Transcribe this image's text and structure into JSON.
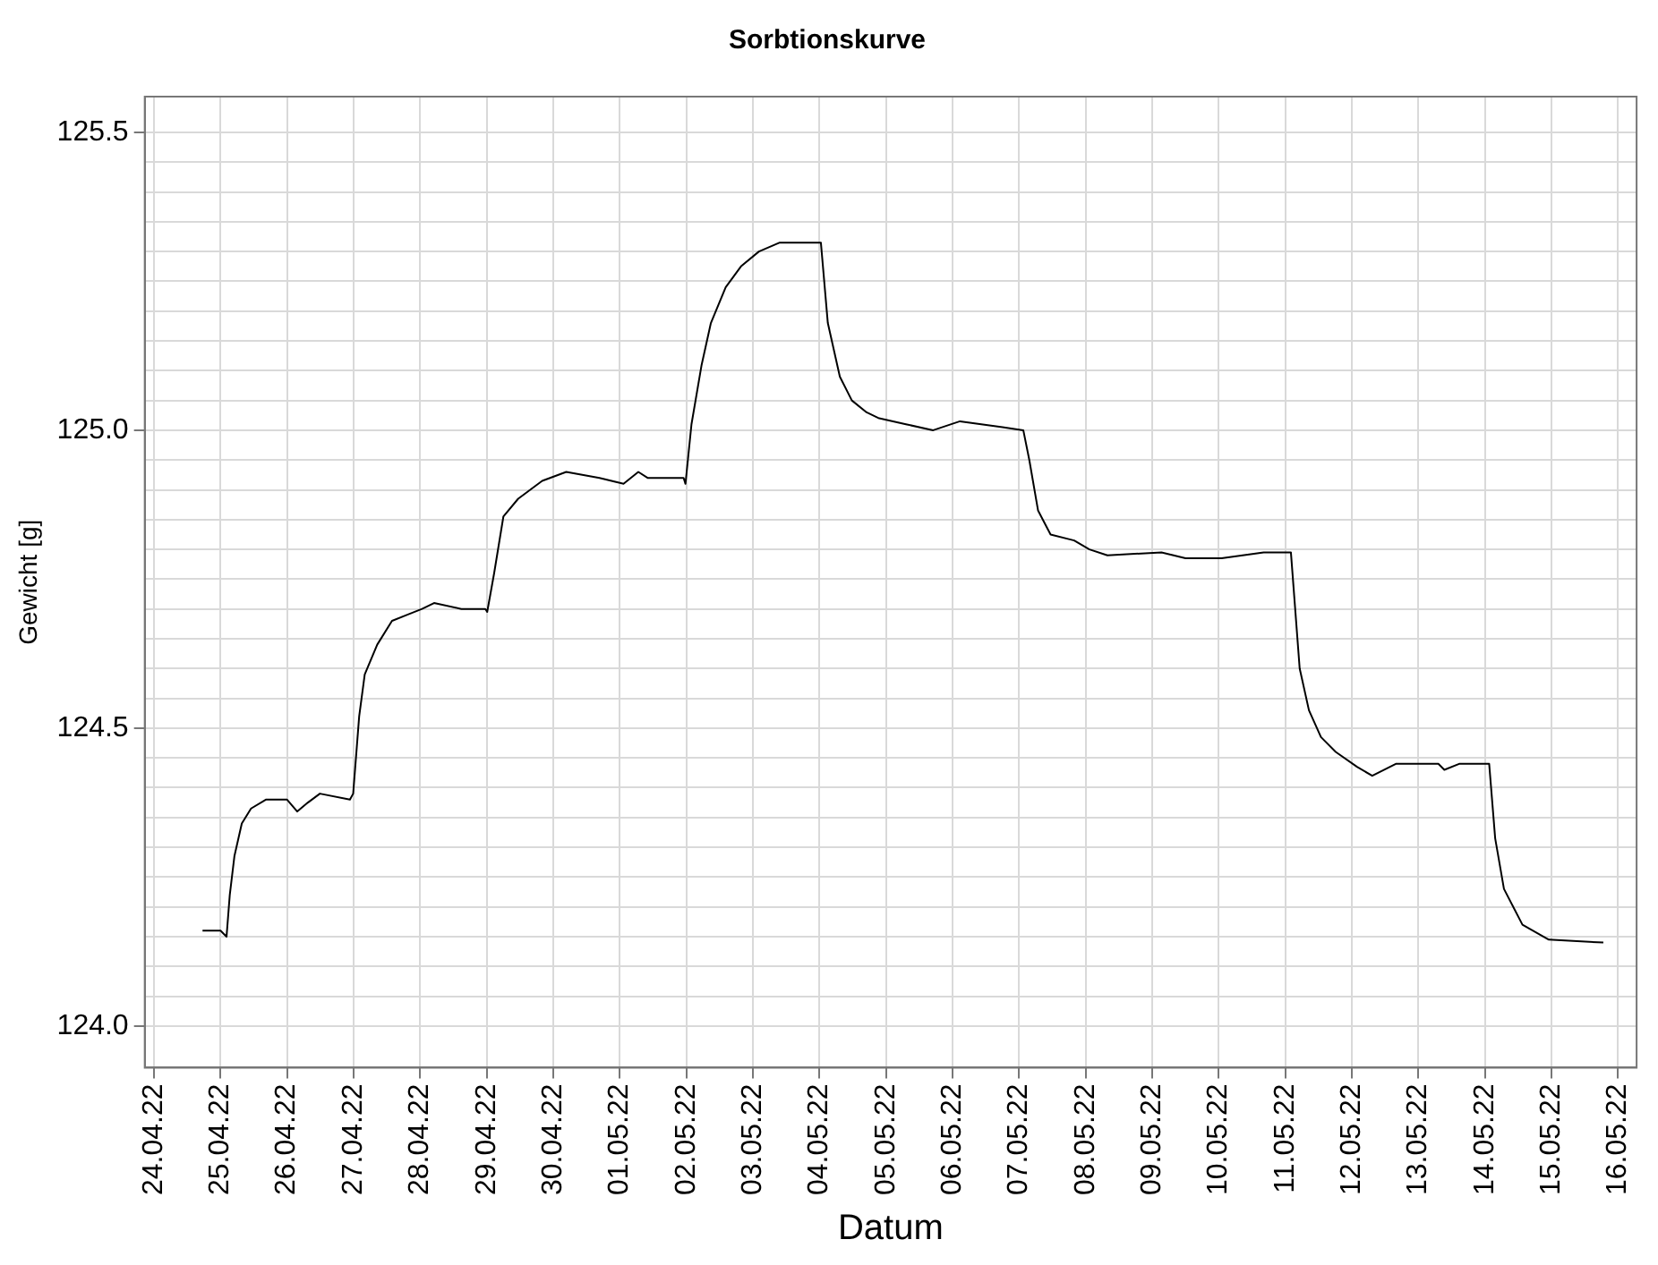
{
  "chart_data": {
    "type": "line",
    "title": "Sorbtionskurve",
    "xlabel": "Datum",
    "ylabel": "Gewicht [g]",
    "x": [
      "--04-24T17:30",
      "--04-25T00:00",
      "--04-25T02:10",
      "--04-25T03:20",
      "--04-25T05:00",
      "--04-25T07:40",
      "--04-25T11:00",
      "--04-25T16:20",
      "--04-26T00:00",
      "--04-26T03:40",
      "--04-26T07:30",
      "--04-26T11:50",
      "--04-26T22:40",
      "--04-26T23:50",
      "--04-27T02:00",
      "--04-27T04:00",
      "--04-27T08:30",
      "--04-27T13:50",
      "--04-27T19:10",
      "--04-28T00:40",
      "--04-28T05:00",
      "--04-28T14:50",
      "--04-28T23:30",
      "--04-29T00:10",
      "--04-29T02:40",
      "--04-29T06:00",
      "--04-29T11:20",
      "--04-29T20:00",
      "--04-30T04:40",
      "--04-30T16:40",
      "--05-01T01:20",
      "--05-01T06:40",
      "--05-01T10:00",
      "--05-01T23:00",
      "--05-01T23:40",
      "--05-02T01:50",
      "--05-02T05:30",
      "--05-02T08:50",
      "--05-02T14:10",
      "--05-02T19:40",
      "--05-03T02:10",
      "--05-03T09:40",
      "--05-04T00:30",
      "--05-04T03:00",
      "--05-04T07:20",
      "--05-04T11:40",
      "--05-04T17:00",
      "--05-04T21:30",
      "--05-05T07:10",
      "--05-05T17:00",
      "--05-06T02:40",
      "--05-06T18:00",
      "--05-07T01:30",
      "--05-07T03:40",
      "--05-07T06:50",
      "--05-07T11:20",
      "--05-07T19:50",
      "--05-08T01:20",
      "--05-08T07:50",
      "--05-09T03:20",
      "--05-09T12:00",
      "--05-10T01:00",
      "--05-10T16:10",
      "--05-11T02:00",
      "--05-11T05:10",
      "--05-11T08:30",
      "--05-11T12:50",
      "--05-11T18:10",
      "--05-12T01:50",
      "--05-12T07:20",
      "--05-12T15:50",
      "--05-13T07:10",
      "--05-13T09:20",
      "--05-13T14:40",
      "--05-14T01:30",
      "--05-14T03:40",
      "--05-14T06:50",
      "--05-14T13:30",
      "--05-14T23:00",
      "--05-15T18:40"
    ],
    "series": [
      {
        "color": "#000000",
        "values": [
          124.16,
          124.16,
          124.15,
          124.22,
          124.285,
          124.34,
          124.365,
          124.38,
          124.38,
          124.36,
          124.375,
          124.39,
          124.38,
          124.39,
          124.52,
          124.59,
          124.64,
          124.68,
          124.69,
          124.7,
          124.71,
          124.7,
          124.7,
          124.695,
          124.76,
          124.855,
          124.885,
          124.915,
          124.93,
          124.92,
          124.91,
          124.93,
          124.92,
          124.92,
          124.91,
          125.01,
          125.11,
          125.18,
          125.24,
          125.275,
          125.3,
          125.315,
          125.315,
          125.18,
          125.09,
          125.05,
          125.03,
          125.02,
          125.01,
          125.0,
          125.015,
          125.005,
          125.0,
          124.95,
          124.865,
          124.825,
          124.815,
          124.8,
          124.79,
          124.795,
          124.785,
          124.785,
          124.795,
          124.795,
          124.6,
          124.53,
          124.485,
          124.46,
          124.435,
          124.42,
          124.44,
          124.44,
          124.43,
          124.44,
          124.44,
          124.315,
          124.23,
          124.17,
          124.145,
          124.14
        ]
      }
    ],
    "xlim": [
      "--04-23T20:40",
      "--05-16T06:40"
    ],
    "xticks": [
      {
        "value": "--04-24",
        "label": "24.04.22"
      },
      {
        "value": "--04-25",
        "label": "25.04.22"
      },
      {
        "value": "--04-26",
        "label": "26.04.22"
      },
      {
        "value": "--04-27",
        "label": "27.04.22"
      },
      {
        "value": "--04-28",
        "label": "28.04.22"
      },
      {
        "value": "--04-29",
        "label": "29.04.22"
      },
      {
        "value": "--04-30",
        "label": "30.04.22"
      },
      {
        "value": "--05-01",
        "label": "01.05.22"
      },
      {
        "value": "--05-02",
        "label": "02.05.22"
      },
      {
        "value": "--05-03",
        "label": "03.05.22"
      },
      {
        "value": "--05-04",
        "label": "04.05.22"
      },
      {
        "value": "--05-05",
        "label": "05.05.22"
      },
      {
        "value": "--05-06",
        "label": "06.05.22"
      },
      {
        "value": "--05-07",
        "label": "07.05.22"
      },
      {
        "value": "--05-08",
        "label": "08.05.22"
      },
      {
        "value": "--05-09",
        "label": "09.05.22"
      },
      {
        "value": "--05-10",
        "label": "10.05.22"
      },
      {
        "value": "--05-11",
        "label": "11.05.22"
      },
      {
        "value": "--05-12",
        "label": "12.05.22"
      },
      {
        "value": "--05-13",
        "label": "13.05.22"
      },
      {
        "value": "--05-14",
        "label": "14.05.22"
      },
      {
        "value": "--05-15",
        "label": "15.05.22"
      },
      {
        "value": "--05-16",
        "label": "16.05.22"
      }
    ],
    "ylim": [
      123.93,
      125.56
    ],
    "yticks": [
      {
        "value": 124.0,
        "label": "124.0"
      },
      {
        "value": 124.05,
        "label": null
      },
      {
        "value": 124.1,
        "label": null
      },
      {
        "value": 124.15,
        "label": null
      },
      {
        "value": 124.2,
        "label": null
      },
      {
        "value": 124.25,
        "label": null
      },
      {
        "value": 124.3,
        "label": null
      },
      {
        "value": 124.35,
        "label": null
      },
      {
        "value": 124.4,
        "label": null
      },
      {
        "value": 124.45,
        "label": null
      },
      {
        "value": 124.5,
        "label": "124.5"
      },
      {
        "value": 124.55,
        "label": null
      },
      {
        "value": 124.6,
        "label": null
      },
      {
        "value": 124.65,
        "label": null
      },
      {
        "value": 124.7,
        "label": null
      },
      {
        "value": 124.75,
        "label": null
      },
      {
        "value": 124.8,
        "label": null
      },
      {
        "value": 124.85,
        "label": null
      },
      {
        "value": 124.9,
        "label": null
      },
      {
        "value": 124.95,
        "label": null
      },
      {
        "value": 125.0,
        "label": "125.0"
      },
      {
        "value": 125.05,
        "label": null
      },
      {
        "value": 125.1,
        "label": null
      },
      {
        "value": 125.15,
        "label": null
      },
      {
        "value": 125.2,
        "label": null
      },
      {
        "value": 125.25,
        "label": null
      },
      {
        "value": 125.3,
        "label": null
      },
      {
        "value": 125.35,
        "label": null
      },
      {
        "value": 125.4,
        "label": null
      },
      {
        "value": 125.45,
        "label": null
      },
      {
        "value": 125.5,
        "label": "125.5"
      }
    ],
    "grid": true,
    "marker": "none",
    "line_style": "solid"
  }
}
